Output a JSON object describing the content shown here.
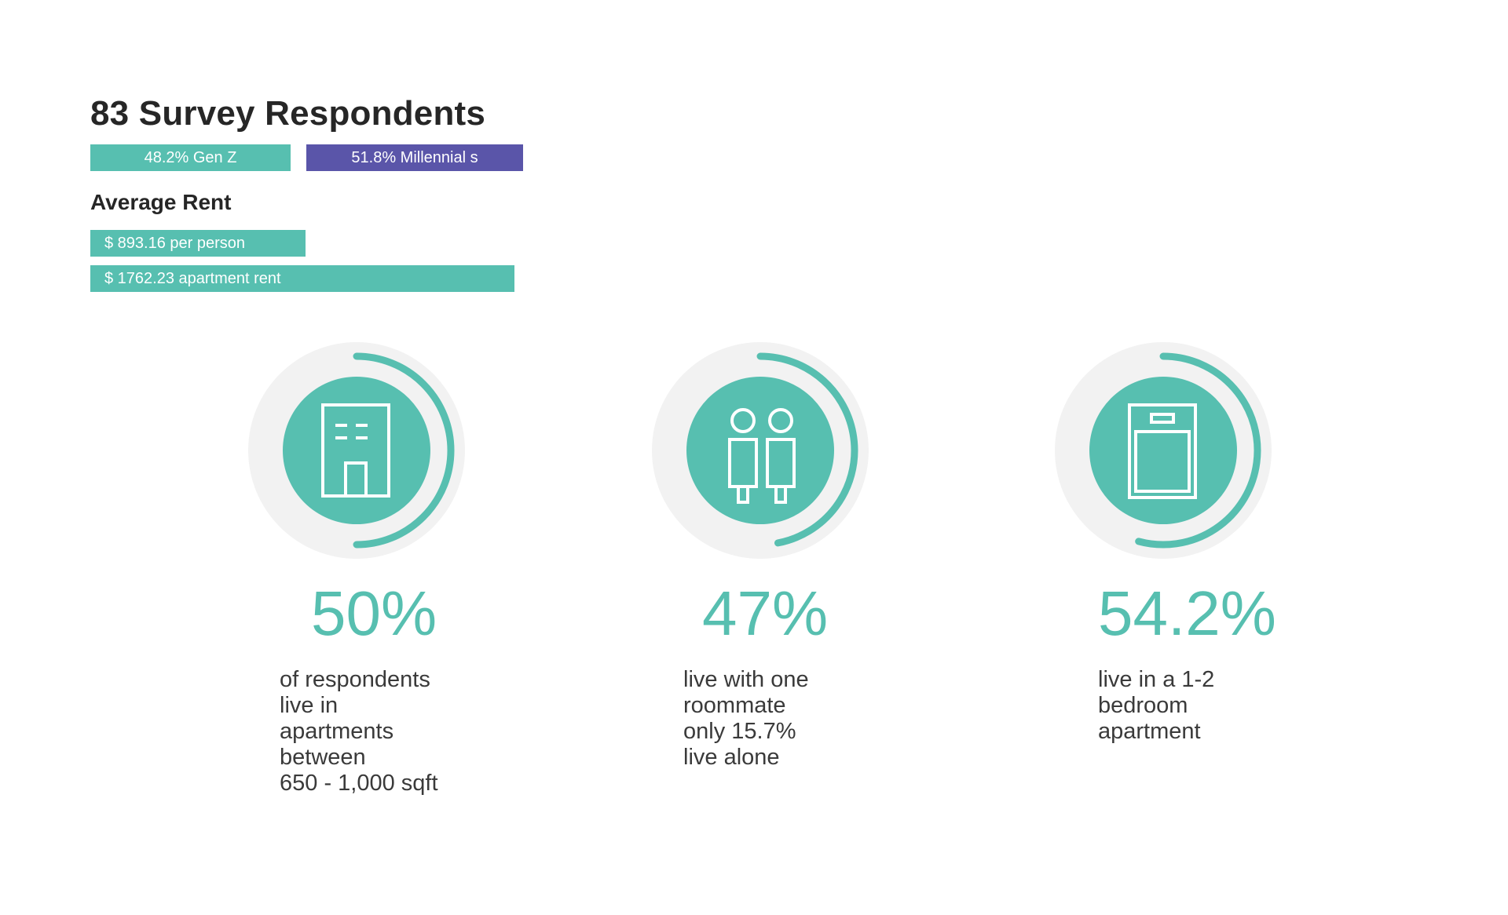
{
  "chart_data": {
    "type": "infographic",
    "title": "83 Survey Respondents",
    "generations": [
      {
        "label": "48.2% Gen Z",
        "value": 48.2,
        "color": "#57bfb0"
      },
      {
        "label": "51.8% Millennial s",
        "value": 51.8,
        "color": "#5a55a9"
      }
    ],
    "rent": {
      "title": "Average Rent",
      "items": [
        {
          "label": "$ 893.16  per person",
          "value": 893.16,
          "color": "#57bfb0"
        },
        {
          "label": "$ 1762.23 apartment rent",
          "value": 1762.23,
          "color": "#57bfb0"
        }
      ]
    },
    "stats": [
      {
        "value_label": "50%",
        "value": 50,
        "icon": "building-icon",
        "description": "of respondents\nlive in\napartments\nbetween\n650 - 1,000 sqft"
      },
      {
        "value_label": "47%",
        "value": 47,
        "icon": "roommates-icon",
        "description": "live with one\nroommate\nonly 15.7%\nlive alone"
      },
      {
        "value_label": "54.2%",
        "value": 54.2,
        "icon": "bedroom-icon",
        "description": "live in a 1-2\nbedroom\napartment"
      }
    ],
    "colors": {
      "accent": "#57bfb0",
      "secondary": "#5a55a9",
      "ring_bg": "#f2f2f2"
    }
  }
}
